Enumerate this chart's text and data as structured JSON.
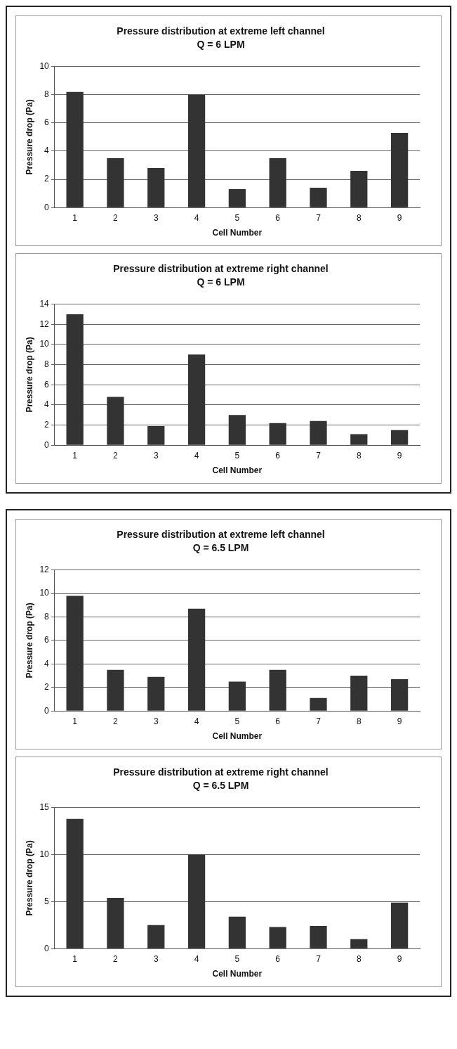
{
  "chart_data": [
    {
      "type": "bar",
      "title": "Pressure distribution at extreme left channel",
      "subtitle": "Q = 6 LPM",
      "xlabel": "Cell Number",
      "ylabel": "Pressure drop (Pa)",
      "categories": [
        "1",
        "2",
        "3",
        "4",
        "5",
        "6",
        "7",
        "8",
        "9"
      ],
      "series": [
        {
          "color": "#333333",
          "values": [
            8.2,
            3.5,
            2.8,
            8.0,
            1.3,
            3.5,
            1.4,
            2.6,
            5.3
          ]
        }
      ],
      "ylim": [
        0,
        10
      ],
      "yticks": [
        0,
        2,
        4,
        6,
        8,
        10
      ],
      "grid": "y",
      "legend": false
    },
    {
      "type": "bar",
      "title": "Pressure distribution at extreme right channel",
      "subtitle": "Q = 6 LPM",
      "xlabel": "Cell Number",
      "ylabel": "Pressure drop (Pa)",
      "categories": [
        "1",
        "2",
        "3",
        "4",
        "5",
        "6",
        "7",
        "8",
        "9"
      ],
      "series": [
        {
          "color": "#333333",
          "values": [
            13.0,
            4.8,
            1.9,
            9.0,
            3.0,
            2.2,
            2.4,
            1.1,
            1.5
          ]
        }
      ],
      "ylim": [
        0,
        14
      ],
      "yticks": [
        0,
        2,
        4,
        6,
        8,
        10,
        12,
        14
      ],
      "grid": "y",
      "legend": false
    },
    {
      "type": "bar",
      "title": "Pressure distribution at extreme left channel",
      "subtitle": "Q = 6.5 LPM",
      "xlabel": "Cell Number",
      "ylabel": "Pressure drop (Pa)",
      "categories": [
        "1",
        "2",
        "3",
        "4",
        "5",
        "6",
        "7",
        "8",
        "9"
      ],
      "series": [
        {
          "color": "#333333",
          "values": [
            9.8,
            3.5,
            2.9,
            8.7,
            2.5,
            3.5,
            1.1,
            3.0,
            2.7
          ]
        }
      ],
      "ylim": [
        0,
        12
      ],
      "yticks": [
        0,
        2,
        4,
        6,
        8,
        10,
        12
      ],
      "grid": "y",
      "legend": false
    },
    {
      "type": "bar",
      "title": "Pressure distribution at extreme right channel",
      "subtitle": "Q = 6.5 LPM",
      "xlabel": "Cell Number",
      "ylabel": "Pressure drop (Pa)",
      "categories": [
        "1",
        "2",
        "3",
        "4",
        "5",
        "6",
        "7",
        "8",
        "9"
      ],
      "series": [
        {
          "color": "#333333",
          "values": [
            13.8,
            5.4,
            2.5,
            10.0,
            3.4,
            2.3,
            2.4,
            1.0,
            4.9
          ]
        }
      ],
      "ylim": [
        0,
        15
      ],
      "yticks": [
        0,
        5,
        10,
        15
      ],
      "grid": "y",
      "legend": false
    }
  ]
}
